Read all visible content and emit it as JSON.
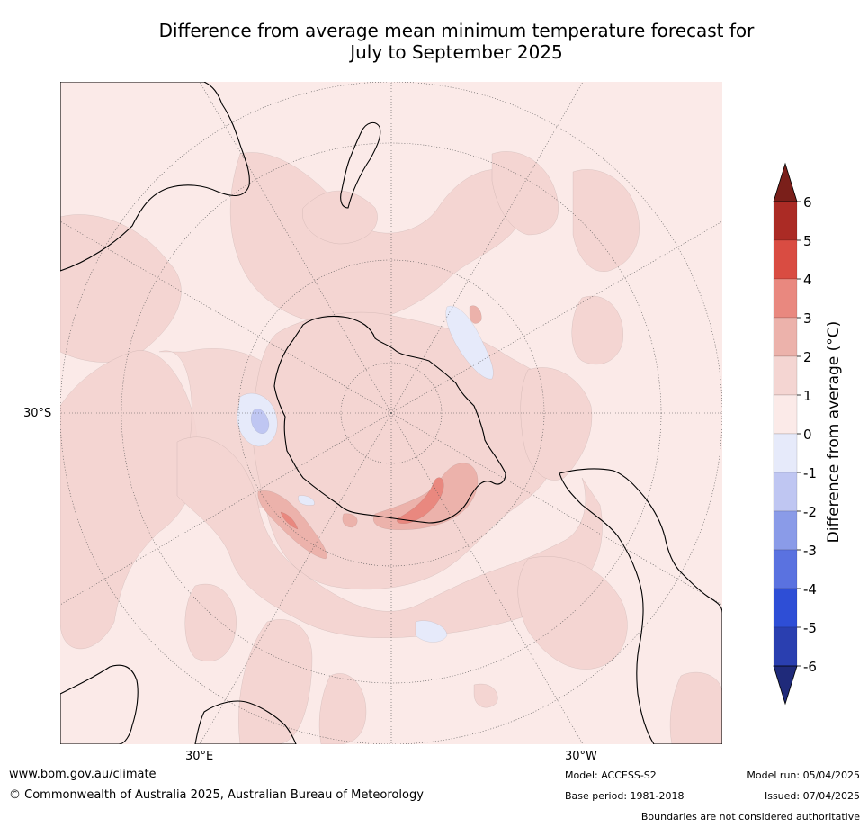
{
  "title_line1": "Difference from average mean minimum temperature forecast for",
  "title_line2": "July to September 2025",
  "map": {
    "projection": "south-polar-stereographic",
    "lat_label": "30°S",
    "lon_labels": [
      "30°E",
      "30°W"
    ],
    "colors": {
      "ocean_background": "#fbeae8",
      "anom_1_2": "#f4d5d2",
      "anom_2_3": "#ecb2ab",
      "anom_3_4": "#e9887f",
      "anom_neg_0_1": "#e6eafa",
      "anom_neg_1_2": "#bfc6f2",
      "coastline": "#000000"
    }
  },
  "colorbar": {
    "label": "Difference from average (°C)",
    "ticks": [
      "6",
      "5",
      "4",
      "3",
      "2",
      "1",
      "0",
      "-1",
      "-2",
      "-3",
      "-4",
      "-5",
      "-6"
    ],
    "colors": [
      "#ab2b25",
      "#d94c42",
      "#e9887f",
      "#ecb2ab",
      "#f4d5d2",
      "#fbeae8",
      "#e6eafa",
      "#bfc6f2",
      "#8a9be8",
      "#5a72e0",
      "#2e4ed6",
      "#2a3fb0"
    ],
    "over_color": "#7a1f1a",
    "under_color": "#1f2a7a"
  },
  "footer": {
    "website": "www.bom.gov.au/climate",
    "copyright": "© Commonwealth of Australia 2025, Australian Bureau of Meteorology",
    "model": "Model: ACCESS-S2",
    "base_period": "Base period: 1981-2018",
    "model_run": "Model run: 05/04/2025",
    "issued": "Issued: 07/04/2025",
    "disclaimer": "Boundaries are not considered authoritative"
  }
}
